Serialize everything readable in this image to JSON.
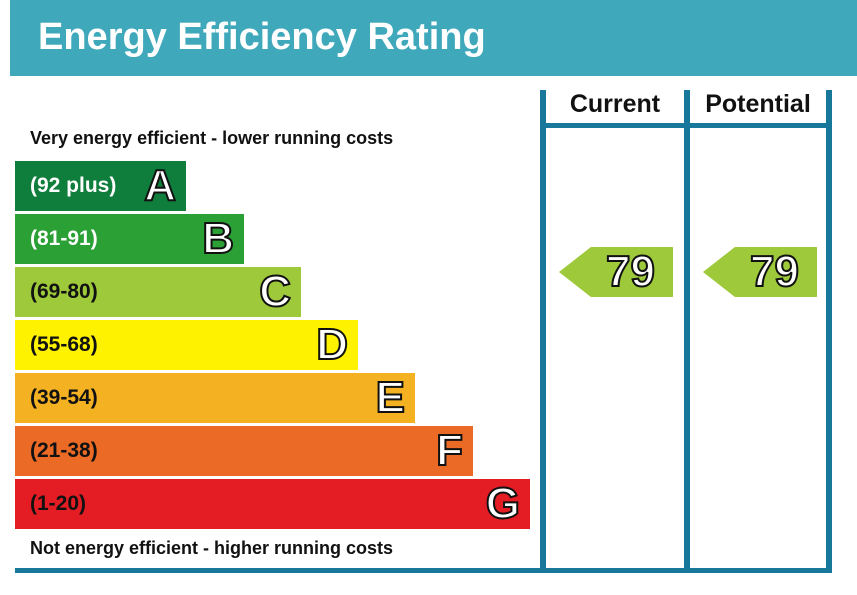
{
  "chart_data": {
    "type": "table",
    "title": "Energy Efficiency Rating",
    "top_note": "Very energy efficient - lower running costs",
    "bottom_note": "Not energy efficient - higher running costs",
    "bands": [
      {
        "letter": "A",
        "range": "(92 plus)",
        "color": "#0f7d3b",
        "text_color": "#ffffff"
      },
      {
        "letter": "B",
        "range": "(81-91)",
        "color": "#2ba035",
        "text_color": "#ffffff"
      },
      {
        "letter": "C",
        "range": "(69-80)",
        "color": "#9dc93b",
        "text_color": "#111111"
      },
      {
        "letter": "D",
        "range": "(55-68)",
        "color": "#fff200",
        "text_color": "#111111"
      },
      {
        "letter": "E",
        "range": "(39-54)",
        "color": "#f4b121",
        "text_color": "#111111"
      },
      {
        "letter": "F",
        "range": "(21-38)",
        "color": "#eb6a25",
        "text_color": "#111111"
      },
      {
        "letter": "G",
        "range": "(1-20)",
        "color": "#e31d23",
        "text_color": "#111111"
      }
    ],
    "columns": [
      {
        "label": "Current",
        "value": "79",
        "color": "#9dc93b"
      },
      {
        "label": "Potential",
        "value": "79",
        "color": "#9dc93b"
      }
    ]
  }
}
